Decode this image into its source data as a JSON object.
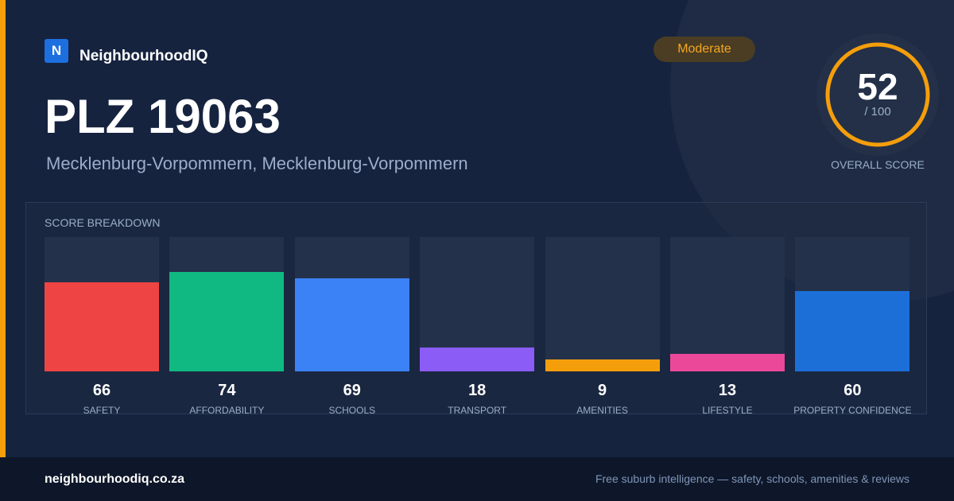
{
  "brand": {
    "logo_letter": "N",
    "name": "NeighbourhoodIQ"
  },
  "header": {
    "title": "PLZ 19063",
    "subtitle": "Mecklenburg-Vorpommern, Mecklenburg-Vorpommern",
    "badge": "Moderate"
  },
  "overall": {
    "value": "52",
    "max": "/ 100",
    "score": 52,
    "caption": "OVERALL SCORE"
  },
  "chart_data": {
    "type": "bar",
    "title": "SCORE BREAKDOWN",
    "ylim": [
      0,
      100
    ],
    "categories": [
      "SAFETY",
      "AFFORDABILITY",
      "SCHOOLS",
      "TRANSPORT",
      "AMENITIES",
      "LIFESTYLE",
      "PROPERTY CONFIDENCE"
    ],
    "values": [
      66,
      74,
      69,
      18,
      9,
      13,
      60
    ],
    "colors": [
      "#ef4444",
      "#10b981",
      "#3b82f6",
      "#8b5cf6",
      "#f59e0b",
      "#ec4899",
      "#1d6fd8"
    ]
  },
  "colors": {
    "accent": "#f59e0b",
    "background": "#16233f",
    "footer": "#0e1729",
    "brand": "#1d6fe0"
  },
  "footer": {
    "url": "neighbourhoodiq.co.za",
    "tagline": "Free suburb intelligence — safety, schools, amenities & reviews"
  }
}
